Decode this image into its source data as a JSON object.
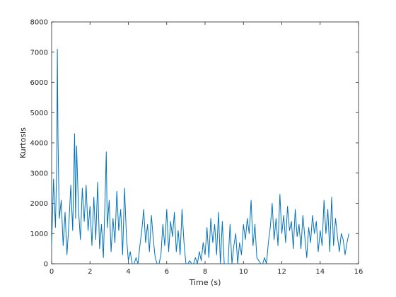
{
  "chart_data": {
    "type": "line",
    "title": "",
    "xlabel": "Time (s)",
    "ylabel": "Kurtosis",
    "xlim": [
      0,
      16
    ],
    "ylim": [
      0,
      8000
    ],
    "xticks": [
      0,
      2,
      4,
      6,
      8,
      10,
      12,
      14,
      16
    ],
    "yticks": [
      0,
      1000,
      2000,
      3000,
      4000,
      5000,
      6000,
      7000,
      8000
    ],
    "grid": false,
    "legend": "none",
    "series_color": "#0072BD",
    "series": [
      {
        "x": [
          0.0,
          0.1,
          0.2,
          0.27,
          0.3,
          0.33,
          0.4,
          0.5,
          0.6,
          0.7,
          0.8,
          0.9,
          1.0,
          1.1,
          1.2,
          1.25,
          1.3,
          1.4,
          1.5,
          1.6,
          1.7,
          1.8,
          1.9,
          2.0,
          2.1,
          2.2,
          2.3,
          2.4,
          2.5,
          2.6,
          2.7,
          2.8,
          2.85,
          2.9,
          3.0,
          3.1,
          3.2,
          3.3,
          3.4,
          3.5,
          3.6,
          3.7,
          3.8,
          3.9,
          4.0,
          4.1,
          4.2,
          4.3,
          4.4,
          4.5,
          4.6,
          4.7,
          4.8,
          4.9,
          5.0,
          5.1,
          5.2,
          5.3,
          5.4,
          5.5,
          5.6,
          5.7,
          5.8,
          5.9,
          6.0,
          6.1,
          6.2,
          6.3,
          6.4,
          6.5,
          6.6,
          6.7,
          6.8,
          6.9,
          7.0,
          7.1,
          7.2,
          7.3,
          7.4,
          7.5,
          7.6,
          7.7,
          7.8,
          7.9,
          8.0,
          8.1,
          8.2,
          8.3,
          8.4,
          8.5,
          8.6,
          8.7,
          8.8,
          8.9,
          9.0,
          9.1,
          9.2,
          9.3,
          9.4,
          9.5,
          9.6,
          9.7,
          9.8,
          9.9,
          10.0,
          10.1,
          10.2,
          10.3,
          10.4,
          10.5,
          10.6,
          10.7,
          10.8,
          10.9,
          11.0,
          11.1,
          11.2,
          11.3,
          11.4,
          11.5,
          11.6,
          11.7,
          11.8,
          11.9,
          12.0,
          12.1,
          12.2,
          12.3,
          12.4,
          12.5,
          12.6,
          12.7,
          12.8,
          12.9,
          13.0,
          13.1,
          13.2,
          13.3,
          13.4,
          13.5,
          13.6,
          13.7,
          13.8,
          13.9,
          14.0,
          14.1,
          14.2,
          14.3,
          14.4,
          14.5,
          14.6,
          14.7,
          14.8,
          14.9,
          15.0,
          15.1,
          15.2,
          15.3,
          15.4,
          15.5
        ],
        "y": [
          600,
          2800,
          1200,
          3400,
          7100,
          4200,
          1500,
          2100,
          600,
          1700,
          300,
          1300,
          2600,
          1100,
          4300,
          1500,
          3900,
          1800,
          800,
          2500,
          1400,
          2600,
          1100,
          1900,
          600,
          2200,
          800,
          2700,
          500,
          1300,
          200,
          2400,
          3700,
          1200,
          2100,
          400,
          1500,
          700,
          2400,
          1100,
          1800,
          300,
          2500,
          900,
          100,
          400,
          0,
          0,
          200,
          0,
          600,
          1100,
          1800,
          700,
          1300,
          400,
          1600,
          800,
          200,
          0,
          0,
          300,
          1300,
          600,
          1800,
          400,
          1400,
          900,
          1700,
          400,
          1100,
          300,
          1800,
          700,
          0,
          0,
          100,
          0,
          0,
          200,
          0,
          400,
          100,
          700,
          300,
          1200,
          200,
          1500,
          700,
          1300,
          300,
          1700,
          0,
          1400,
          0,
          0,
          0,
          1300,
          0,
          600,
          1000,
          0,
          700,
          300,
          1300,
          800,
          1500,
          1000,
          2100,
          600,
          1300,
          200,
          100,
          0,
          0,
          200,
          0,
          700,
          1200,
          2000,
          800,
          1500,
          600,
          2300,
          1000,
          1600,
          700,
          1900,
          1100,
          1400,
          500,
          1800,
          900,
          1300,
          500,
          1600,
          900,
          200,
          1200,
          700,
          1600,
          1000,
          1400,
          400,
          1100,
          600,
          2100,
          1000,
          1800,
          400,
          2200,
          600,
          1500,
          900,
          400,
          1000,
          800,
          300,
          700,
          1000
        ]
      }
    ]
  }
}
